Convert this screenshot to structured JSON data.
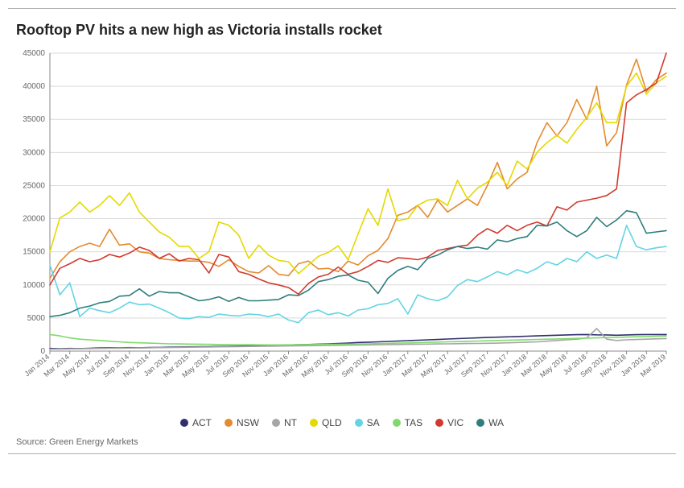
{
  "chart": {
    "type": "line",
    "title": "Rooftop PV hits a new high as Victoria installs rocket",
    "title_fontsize": 18,
    "source": "Source:  Green Energy Markets",
    "background_color": "#ffffff",
    "grid_color": "#d9d9d9",
    "axis_color": "#888888",
    "text_color": "#666666",
    "ylim": [
      0,
      45000
    ],
    "ytick_step": 5000,
    "yticks": [
      0,
      5000,
      10000,
      15000,
      20000,
      25000,
      30000,
      35000,
      40000,
      45000
    ],
    "line_width": 1.6,
    "x_labels": [
      "Jan 2014",
      "Mar 2014",
      "May 2014",
      "Jul 2014",
      "Sep 2014",
      "Nov 2014",
      "Jan 2015",
      "Mar 2015",
      "May 2015",
      "Jul 2015",
      "Sep 2015",
      "Nov 2015",
      "Jan 2016",
      "Mar 2016",
      "May 2016",
      "Jul 2016",
      "Sep 2016",
      "Nov 2016",
      "Jan 2017",
      "Mar 2017",
      "May 2017",
      "Jul 2017",
      "Sep 2017",
      "Nov 2017",
      "Jan 2018",
      "Mar 2018",
      "May 2018",
      "Jul 2018",
      "Sep 2018",
      "Nov 2018",
      "Jan 2019",
      "Mar 2019"
    ],
    "legend_order": [
      "ACT",
      "NSW",
      "NT",
      "QLD",
      "SA",
      "TAS",
      "VIC",
      "WA"
    ],
    "series": {
      "ACT": {
        "color": "#2f2f6e",
        "values": [
          400,
          350,
          400,
          380,
          420,
          480,
          500,
          480,
          520,
          500,
          540,
          560,
          600,
          620,
          640,
          660,
          680,
          700,
          720,
          760,
          800,
          820,
          840,
          880,
          920,
          960,
          1000,
          1040,
          1100,
          1160,
          1220,
          1300,
          1350,
          1400,
          1460,
          1520,
          1580,
          1640,
          1700,
          1750,
          1820,
          1880,
          1940,
          2000,
          2050,
          2100,
          2150,
          2200,
          2250,
          2300,
          2350,
          2400,
          2450,
          2480,
          2500,
          2460,
          2440,
          2400,
          2440,
          2480,
          2500,
          2500,
          2500
        ]
      },
      "NSW": {
        "color": "#e58a2e",
        "values": [
          11000,
          13500,
          15000,
          15800,
          16300,
          15800,
          18400,
          16000,
          16200,
          15000,
          14800,
          14000,
          13800,
          13700,
          13600,
          13600,
          13400,
          12800,
          13800,
          12800,
          12000,
          11800,
          12900,
          11600,
          11400,
          13200,
          13600,
          12400,
          12500,
          12000,
          13600,
          13000,
          14400,
          15200,
          17000,
          20500,
          21000,
          22000,
          20200,
          22800,
          21000,
          22000,
          23000,
          22000,
          25000,
          28500,
          24500,
          26000,
          27000,
          31500,
          34500,
          32500,
          34500,
          38000,
          35000,
          40000,
          31000,
          33000,
          40200,
          44100,
          39200,
          41000,
          42000
        ]
      },
      "NT": {
        "color": "#a6a6a6",
        "values": [
          300,
          320,
          340,
          360,
          380,
          400,
          420,
          440,
          460,
          480,
          500,
          520,
          540,
          560,
          580,
          600,
          620,
          640,
          660,
          680,
          700,
          720,
          740,
          760,
          780,
          800,
          820,
          840,
          860,
          880,
          900,
          920,
          940,
          960,
          980,
          1000,
          1020,
          1040,
          1060,
          1080,
          1100,
          1120,
          1140,
          1160,
          1180,
          1200,
          1250,
          1300,
          1350,
          1400,
          1500,
          1600,
          1700,
          1800,
          2000,
          3400,
          1800,
          1600,
          1700,
          1750,
          1800,
          1850,
          1900
        ]
      },
      "QLD": {
        "color": "#e4d900",
        "values": [
          15000,
          20100,
          21000,
          22500,
          21000,
          22000,
          23500,
          22000,
          23900,
          21000,
          19500,
          18000,
          17200,
          15800,
          15800,
          14000,
          15000,
          19500,
          19000,
          17500,
          14000,
          16000,
          14500,
          13700,
          13500,
          11700,
          13000,
          14300,
          14900,
          15900,
          13800,
          17700,
          21500,
          19000,
          24500,
          19700,
          20000,
          22000,
          22800,
          23000,
          22000,
          25800,
          23000,
          24600,
          25500,
          27000,
          25000,
          28700,
          27500,
          30000,
          31500,
          32600,
          31400,
          33500,
          35300,
          37500,
          34500,
          34500,
          40000,
          42000,
          38800,
          40500,
          41500
        ]
      },
      "SA": {
        "color": "#62d4e3",
        "values": [
          13000,
          8500,
          10300,
          5200,
          6500,
          6100,
          5800,
          6500,
          7400,
          7000,
          7100,
          6500,
          5800,
          5000,
          4900,
          5200,
          5100,
          5600,
          5400,
          5300,
          5600,
          5500,
          5200,
          5600,
          4700,
          4300,
          5800,
          6200,
          5500,
          5800,
          5300,
          6200,
          6400,
          7000,
          7200,
          7900,
          5600,
          8500,
          7900,
          7600,
          8200,
          9900,
          10800,
          10500,
          11200,
          12000,
          11500,
          12300,
          11800,
          12500,
          13500,
          13000,
          14000,
          13500,
          15000,
          14000,
          14500,
          14000,
          19000,
          15800,
          15300,
          15600,
          15800
        ]
      },
      "TAS": {
        "color": "#7fd96b",
        "values": [
          2500,
          2300,
          2000,
          1800,
          1700,
          1600,
          1500,
          1400,
          1300,
          1250,
          1200,
          1150,
          1100,
          1080,
          1060,
          1040,
          1020,
          1000,
          980,
          970,
          960,
          950,
          940,
          940,
          950,
          960,
          980,
          1000,
          1020,
          1040,
          1060,
          1080,
          1100,
          1130,
          1160,
          1200,
          1240,
          1280,
          1320,
          1360,
          1400,
          1440,
          1480,
          1520,
          1560,
          1600,
          1640,
          1680,
          1720,
          1760,
          1800,
          1840,
          1880,
          1920,
          1960,
          2000,
          2040,
          2080,
          2120,
          2160,
          2200,
          2240,
          2280
        ]
      },
      "VIC": {
        "color": "#d23a2e",
        "values": [
          10000,
          12500,
          13200,
          14000,
          13500,
          13800,
          14600,
          14200,
          14800,
          15700,
          15200,
          14000,
          14700,
          13600,
          14000,
          13800,
          11800,
          14600,
          14200,
          12000,
          11600,
          10900,
          10300,
          10000,
          9600,
          8600,
          10200,
          11200,
          11600,
          12700,
          11600,
          12000,
          12800,
          13700,
          13400,
          14100,
          14000,
          13800,
          14200,
          15200,
          15500,
          15800,
          16000,
          17500,
          18500,
          17800,
          19000,
          18200,
          19000,
          19500,
          18900,
          21800,
          21300,
          22500,
          22800,
          23100,
          23500,
          24500,
          37500,
          38700,
          39500,
          40500,
          45000
        ]
      },
      "WA": {
        "color": "#2f7e7e",
        "values": [
          5200,
          5400,
          5800,
          6500,
          6800,
          7300,
          7500,
          8300,
          8400,
          9400,
          8300,
          9000,
          8800,
          8800,
          8200,
          7600,
          7800,
          8200,
          7500,
          8100,
          7600,
          7600,
          7700,
          7800,
          8500,
          8400,
          9200,
          10500,
          10800,
          11300,
          11500,
          10700,
          10400,
          8700,
          11000,
          12200,
          12800,
          12300,
          14000,
          14500,
          15300,
          15800,
          15500,
          15700,
          15400,
          16800,
          16500,
          17000,
          17300,
          19000,
          18900,
          19500,
          18200,
          17300,
          18200,
          20200,
          18800,
          19800,
          21200,
          20900,
          17800,
          18000,
          18200
        ]
      }
    }
  }
}
